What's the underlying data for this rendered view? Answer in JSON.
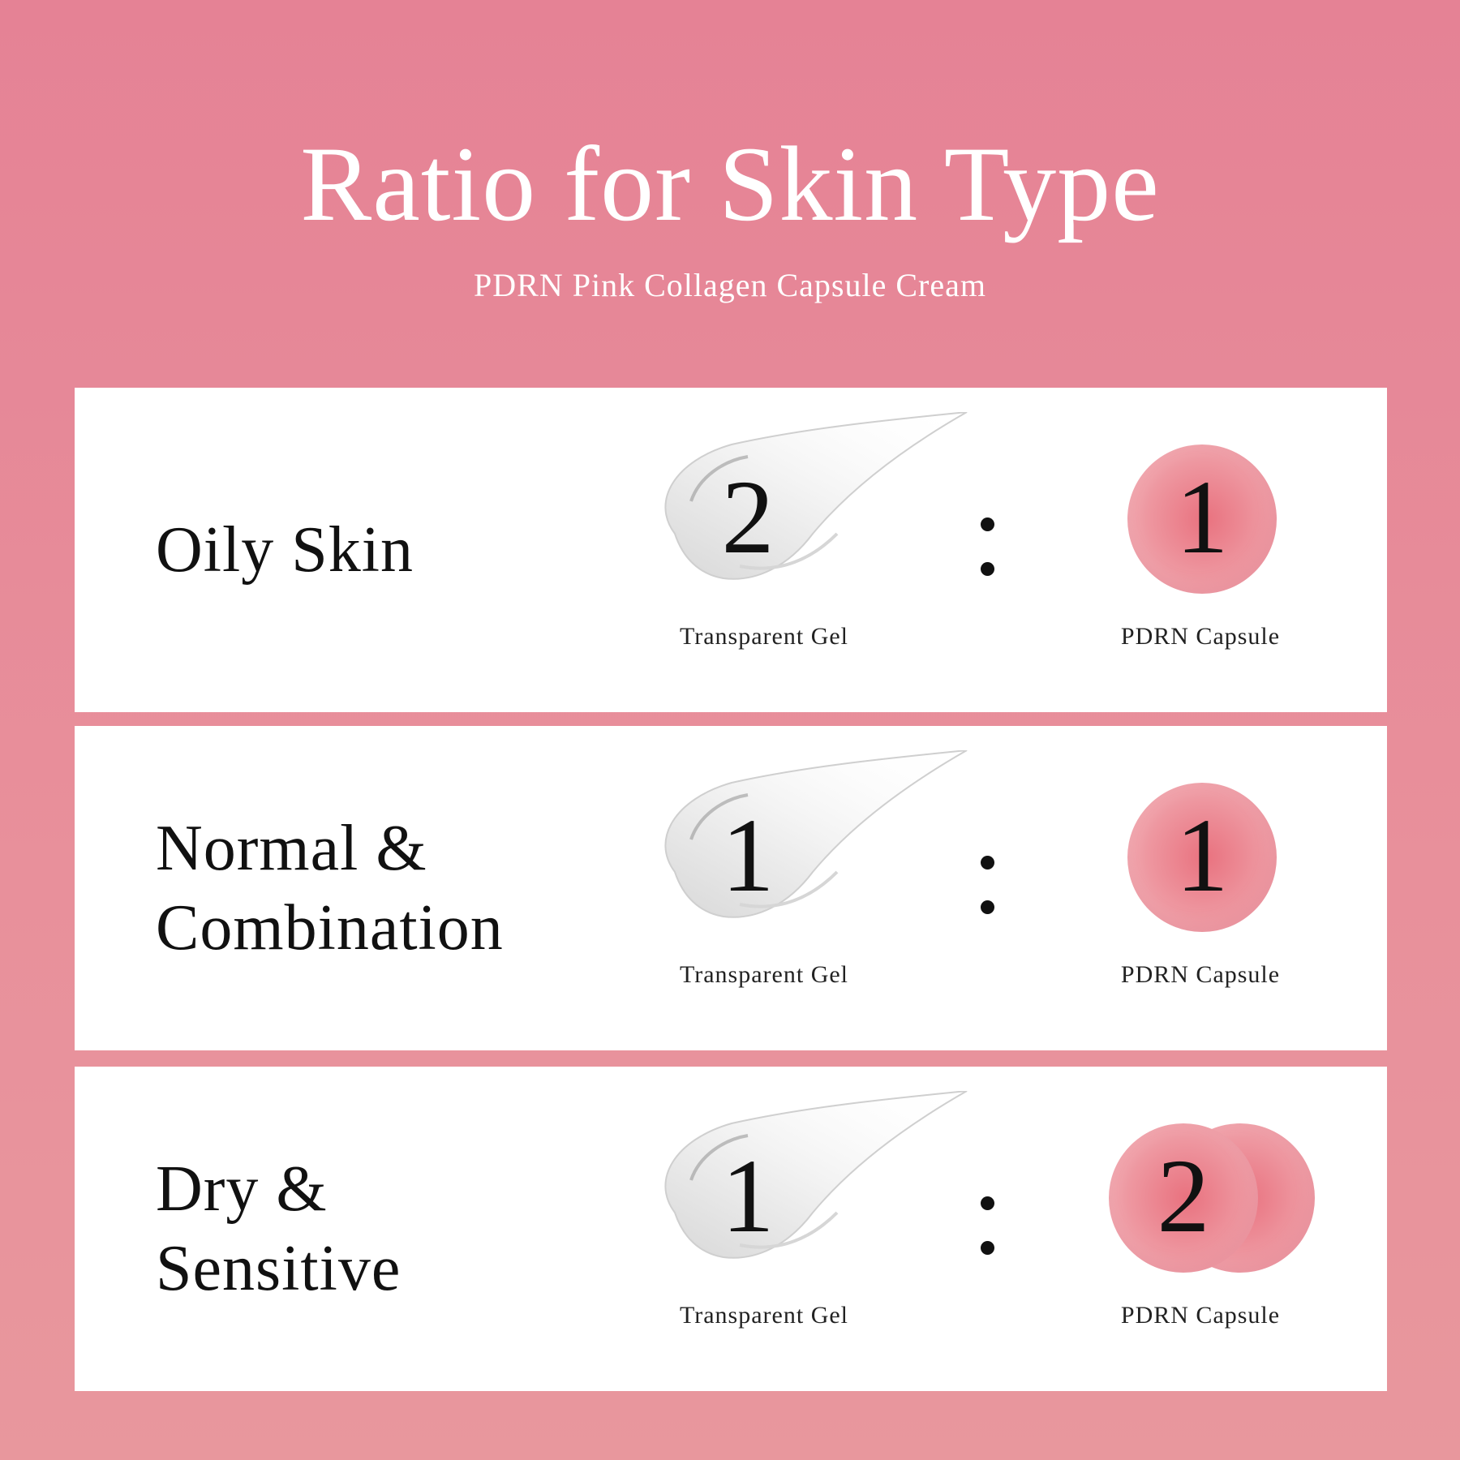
{
  "header": {
    "title": "Ratio for Skin Type",
    "subtitle": "PDRN Pink Collagen Capsule Cream"
  },
  "rows": [
    {
      "skin_type": [
        "Oily Skin"
      ],
      "gel_ratio": "2",
      "capsule_ratio": "1",
      "gel_caption": "Transparent Gel",
      "capsule_caption": "PDRN Capsule"
    },
    {
      "skin_type": [
        "Normal &",
        "Combination"
      ],
      "gel_ratio": "1",
      "capsule_ratio": "1",
      "gel_caption": "Transparent Gel",
      "capsule_caption": "PDRN Capsule"
    },
    {
      "skin_type": [
        "Dry &",
        "Sensitive"
      ],
      "gel_ratio": "1",
      "capsule_ratio": "2",
      "gel_caption": "Transparent Gel",
      "capsule_caption": "PDRN Capsule"
    }
  ],
  "colors": {
    "background": "#e58295",
    "card": "#ffffff",
    "capsule": "#e9727f"
  }
}
